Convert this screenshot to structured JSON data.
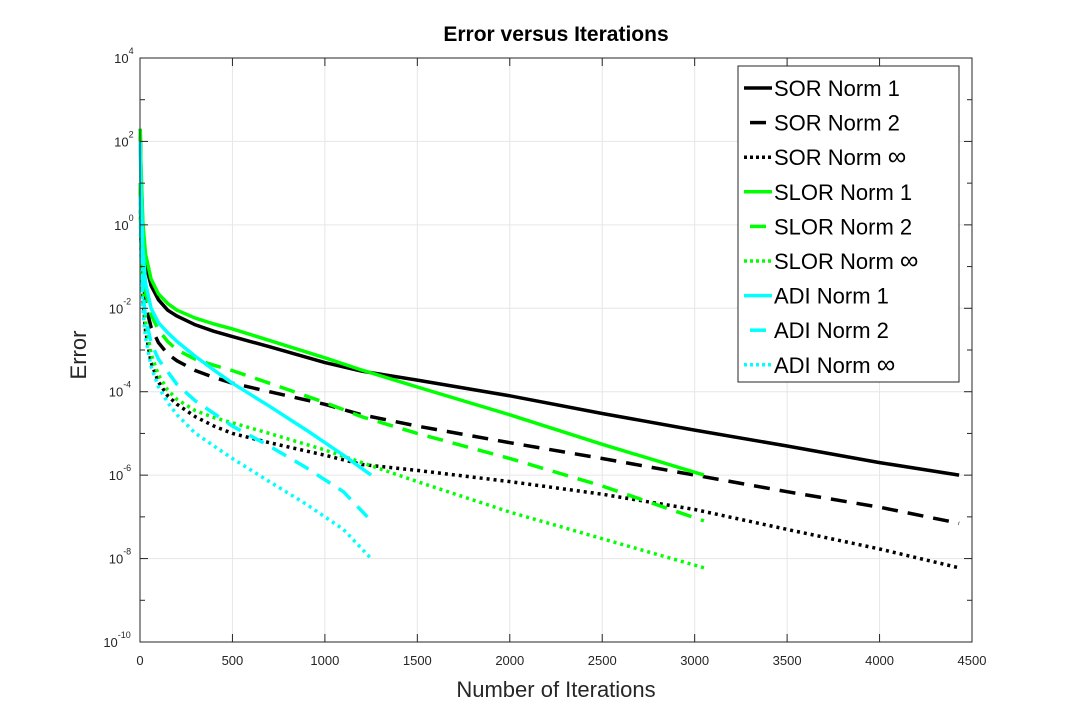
{
  "chart_data": {
    "type": "line",
    "title": "Error versus Iterations",
    "xlabel": "Number of Iterations",
    "ylabel": "Error",
    "xlim": [
      0,
      4500
    ],
    "ylim_log10": [
      -10,
      4
    ],
    "yscale": "log",
    "grid": true,
    "legend_position": "top-right",
    "x_ticks": [
      "0",
      "500",
      "1000",
      "1500",
      "2000",
      "2500",
      "3000",
      "3500",
      "4000",
      "4500"
    ],
    "y_ticks": [
      {
        "base": "10",
        "exp": "4"
      },
      {
        "base": "10",
        "exp": "2"
      },
      {
        "base": "10",
        "exp": "0"
      },
      {
        "base": "10",
        "exp": "-2"
      },
      {
        "base": "10",
        "exp": "-4"
      },
      {
        "base": "10",
        "exp": "-6"
      },
      {
        "base": "10",
        "exp": "-8"
      },
      {
        "base": "10",
        "exp": "-10"
      }
    ],
    "series": [
      {
        "name": "SOR Norm 1",
        "color": "#000000",
        "dash": "solid",
        "x": [
          1,
          5,
          15,
          30,
          60,
          100,
          150,
          200,
          300,
          400,
          500,
          700,
          1000,
          1200,
          1500,
          2000,
          2500,
          3000,
          3500,
          4000,
          4430
        ],
        "y": [
          200,
          20,
          0.8,
          0.12,
          0.035,
          0.016,
          0.009,
          0.0065,
          0.004,
          0.0028,
          0.0021,
          0.0012,
          0.0005,
          0.00031,
          0.00019,
          8e-05,
          3e-05,
          1.2e-05,
          5e-06,
          2e-06,
          1e-06
        ]
      },
      {
        "name": "SOR Norm 2",
        "color": "#000000",
        "dash": "dashed",
        "x": [
          1,
          5,
          15,
          30,
          60,
          100,
          150,
          200,
          300,
          400,
          500,
          700,
          1000,
          1200,
          1500,
          2000,
          2500,
          3000,
          3500,
          4000,
          4430
        ],
        "y": [
          10,
          1.5,
          0.08,
          0.012,
          0.0035,
          0.0015,
          0.0008,
          0.00055,
          0.00032,
          0.00022,
          0.00016,
          0.0001,
          5e-05,
          2.8e-05,
          1.5e-05,
          6e-06,
          2.5e-06,
          1e-06,
          4e-07,
          1.7e-07,
          7e-08
        ]
      },
      {
        "name": "SOR Norm ∞",
        "color": "#000000",
        "dash": "dotted",
        "x": [
          1,
          5,
          15,
          30,
          60,
          100,
          150,
          200,
          300,
          400,
          500,
          700,
          1000,
          1200,
          1500,
          2000,
          2500,
          3000,
          3500,
          4000,
          4430
        ],
        "y": [
          5,
          0.5,
          0.02,
          0.003,
          0.0005,
          0.00017,
          8e-05,
          5e-05,
          2.5e-05,
          1.5e-05,
          1e-05,
          6e-06,
          3e-06,
          1.8e-06,
          1.3e-06,
          7e-07,
          3.5e-07,
          1.5e-07,
          5e-08,
          1.7e-08,
          6e-09
        ]
      },
      {
        "name": "SLOR Norm 1",
        "color": "#00ff00",
        "dash": "solid",
        "x": [
          1,
          5,
          15,
          30,
          60,
          100,
          150,
          200,
          300,
          400,
          500,
          700,
          1000,
          1200,
          1500,
          2000,
          2500,
          3050
        ],
        "y": [
          200,
          30,
          1.2,
          0.2,
          0.05,
          0.022,
          0.013,
          0.009,
          0.0058,
          0.0042,
          0.0032,
          0.0017,
          0.00065,
          0.00033,
          0.00013,
          2.8e-05,
          5.5e-06,
          1e-06
        ]
      },
      {
        "name": "SLOR Norm 2",
        "color": "#00ff00",
        "dash": "dashed",
        "x": [
          1,
          5,
          15,
          30,
          60,
          100,
          150,
          200,
          300,
          400,
          500,
          700,
          1000,
          1200,
          1500,
          2000,
          2500,
          3050
        ],
        "y": [
          10,
          1.5,
          0.1,
          0.025,
          0.007,
          0.003,
          0.0016,
          0.001,
          0.0006,
          0.00043,
          0.00032,
          0.00016,
          5.5e-05,
          2.5e-05,
          1e-05,
          2.5e-06,
          5.5e-07,
          8e-08
        ]
      },
      {
        "name": "SLOR Norm ∞",
        "color": "#00ff00",
        "dash": "dotted",
        "x": [
          1,
          5,
          15,
          30,
          60,
          100,
          150,
          200,
          300,
          400,
          500,
          700,
          1000,
          1200,
          1500,
          2000,
          2500,
          3050
        ],
        "y": [
          5,
          0.7,
          0.03,
          0.005,
          0.0008,
          0.00025,
          0.00011,
          6.5e-05,
          3.5e-05,
          2.4e-05,
          1.8e-05,
          1e-05,
          4e-06,
          2e-06,
          7e-07,
          1.3e-07,
          3e-08,
          6e-09
        ]
      },
      {
        "name": "ADI Norm 1",
        "color": "#00ffff",
        "dash": "solid",
        "x": [
          1,
          5,
          15,
          30,
          60,
          100,
          150,
          200,
          300,
          400,
          500,
          700,
          900,
          1100,
          1250
        ],
        "y": [
          100,
          10,
          0.3,
          0.04,
          0.01,
          0.0045,
          0.0026,
          0.0016,
          0.0007,
          0.00033,
          0.00016,
          4.5e-05,
          1.2e-05,
          3e-06,
          1e-06
        ]
      },
      {
        "name": "ADI Norm 2",
        "color": "#00ffff",
        "dash": "dashed",
        "x": [
          1,
          5,
          15,
          30,
          60,
          100,
          150,
          200,
          300,
          400,
          500,
          700,
          900,
          1100,
          1230
        ],
        "y": [
          5,
          0.5,
          0.03,
          0.006,
          0.0015,
          0.0006,
          0.0003,
          0.00015,
          6e-05,
          3e-05,
          1.5e-05,
          5e-06,
          1.5e-06,
          4e-07,
          1e-07
        ]
      },
      {
        "name": "ADI Norm ∞",
        "color": "#00ffff",
        "dash": "dotted",
        "x": [
          1,
          5,
          15,
          30,
          60,
          100,
          150,
          200,
          300,
          400,
          500,
          700,
          900,
          1100,
          1250
        ],
        "y": [
          2,
          0.2,
          0.01,
          0.002,
          0.0004,
          0.00013,
          5.5e-05,
          2.8e-05,
          1e-05,
          5e-06,
          2.5e-06,
          7e-07,
          2e-07,
          5e-08,
          1e-08
        ]
      }
    ],
    "legend": [
      {
        "label": "SOR Norm 1",
        "base": "SOR Norm 1",
        "suffix": ""
      },
      {
        "label": "SOR Norm 2",
        "base": "SOR Norm 2",
        "suffix": ""
      },
      {
        "label": "SOR Norm ∞",
        "base": "SOR Norm ",
        "suffix": "∞"
      },
      {
        "label": "SLOR Norm 1",
        "base": "SLOR Norm 1",
        "suffix": ""
      },
      {
        "label": "SLOR Norm 2",
        "base": "SLOR Norm 2",
        "suffix": ""
      },
      {
        "label": "SLOR Norm ∞",
        "base": "SLOR Norm ",
        "suffix": "∞"
      },
      {
        "label": "ADI Norm 1",
        "base": "ADI Norm 1",
        "suffix": ""
      },
      {
        "label": "ADI Norm 2",
        "base": "ADI Norm 2",
        "suffix": ""
      },
      {
        "label": "ADI Norm ∞",
        "base": "ADI Norm ",
        "suffix": "∞"
      }
    ]
  }
}
